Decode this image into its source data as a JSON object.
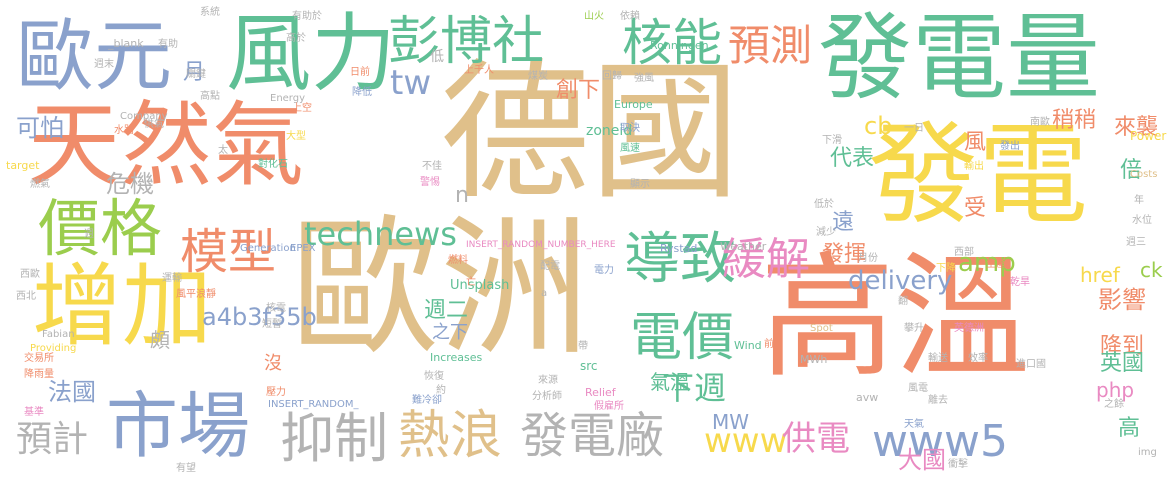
{
  "palette": {
    "tan": "#e0c08a",
    "salmon": "#f08c6a",
    "teal": "#5fbf95",
    "yellow": "#f7d94c",
    "green": "#9bcd4d",
    "gray": "#b3b3b3",
    "blue": "#8aa1cc",
    "pink": "#e98ac2"
  },
  "words": [
    {
      "text": "德國",
      "color": "tan"
    },
    {
      "text": "歐洲",
      "color": "tan"
    },
    {
      "text": "高溫",
      "color": "salmon"
    },
    {
      "text": "發電量",
      "color": "teal"
    },
    {
      "text": "天然氣",
      "color": "salmon"
    },
    {
      "text": "發電",
      "color": "yellow"
    },
    {
      "text": "風力",
      "color": "teal"
    },
    {
      "text": "歐元",
      "color": "blue"
    },
    {
      "text": "增加",
      "color": "yellow"
    },
    {
      "text": "市場",
      "color": "blue"
    },
    {
      "text": "價格",
      "color": "green"
    },
    {
      "text": "彭博社",
      "color": "teal"
    },
    {
      "text": "核能",
      "color": "teal"
    },
    {
      "text": "預測",
      "color": "salmon"
    },
    {
      "text": "模型",
      "color": "salmon"
    },
    {
      "text": "導致",
      "color": "teal"
    },
    {
      "text": "緩解",
      "color": "pink"
    },
    {
      "text": "電價",
      "color": "teal"
    },
    {
      "text": "抑制",
      "color": "gray"
    },
    {
      "text": "熱浪",
      "color": "tan"
    },
    {
      "text": "發電廠",
      "color": "gray"
    },
    {
      "text": "預計",
      "color": "gray"
    },
    {
      "text": "technews",
      "color": "teal"
    },
    {
      "text": "www5",
      "color": "blue"
    },
    {
      "text": "www",
      "color": "yellow"
    },
    {
      "text": "供電",
      "color": "pink"
    },
    {
      "text": "delivery",
      "color": "blue"
    },
    {
      "text": "a4b3f35b",
      "color": "blue"
    },
    {
      "text": "下週",
      "color": "teal"
    },
    {
      "text": "amp",
      "color": "green"
    },
    {
      "text": "php",
      "color": "pink"
    },
    {
      "text": "影響",
      "color": "salmon"
    },
    {
      "text": "降到",
      "color": "salmon"
    },
    {
      "text": "英國",
      "color": "teal"
    },
    {
      "text": "大國",
      "color": "pink"
    },
    {
      "text": "法國",
      "color": "blue"
    },
    {
      "text": "tw",
      "color": "blue"
    },
    {
      "text": "創下",
      "color": "salmon"
    },
    {
      "text": "cb",
      "color": "yellow"
    },
    {
      "text": "代表",
      "color": "teal"
    },
    {
      "text": "危機",
      "color": "gray"
    },
    {
      "text": "可怕",
      "color": "blue"
    },
    {
      "text": "稍稍",
      "color": "salmon"
    },
    {
      "text": "來襲",
      "color": "salmon"
    },
    {
      "text": "風",
      "color": "salmon"
    },
    {
      "text": "倍",
      "color": "teal"
    },
    {
      "text": "受",
      "color": "salmon"
    },
    {
      "text": "遠",
      "color": "blue"
    },
    {
      "text": "發揮",
      "color": "salmon"
    },
    {
      "text": "週二",
      "color": "teal"
    },
    {
      "text": "氣溫",
      "color": "teal"
    },
    {
      "text": "MW",
      "color": "blue"
    },
    {
      "text": "高",
      "color": "teal"
    },
    {
      "text": "href",
      "color": "yellow"
    },
    {
      "text": "ck",
      "color": "green"
    },
    {
      "text": "月",
      "color": "blue"
    },
    {
      "text": "n",
      "color": "gray"
    },
    {
      "text": "頗",
      "color": "gray"
    },
    {
      "text": "沒",
      "color": "salmon"
    },
    {
      "text": "之下",
      "color": "blue"
    },
    {
      "text": "zoneid",
      "color": "teal"
    },
    {
      "text": "Ronningen",
      "color": "teal"
    },
    {
      "text": "Unsplash",
      "color": "teal"
    },
    {
      "text": "INSERT_RANDOM_NUMBER_HERE",
      "color": "pink"
    },
    {
      "text": "Rystad",
      "color": "blue"
    },
    {
      "text": "Weather",
      "color": "gray"
    },
    {
      "text": "Generation",
      "color": "blue"
    },
    {
      "text": "EPEX",
      "color": "blue"
    },
    {
      "text": "Increases",
      "color": "teal"
    },
    {
      "text": "Relief",
      "color": "pink"
    },
    {
      "text": "Wind",
      "color": "teal"
    },
    {
      "text": "MWh",
      "color": "gray"
    },
    {
      "text": "Power",
      "color": "yellow"
    },
    {
      "text": "Europe",
      "color": "teal"
    },
    {
      "text": "Energy",
      "color": "gray"
    },
    {
      "text": "Company",
      "color": "gray"
    },
    {
      "text": "_blank",
      "color": "gray"
    },
    {
      "text": "target",
      "color": "yellow"
    },
    {
      "text": "Fabian",
      "color": "gray"
    },
    {
      "text": "Providing",
      "color": "yellow"
    },
    {
      "text": "INSERT_RANDOM_",
      "color": "blue"
    },
    {
      "text": "Costs",
      "color": "tan"
    },
    {
      "text": "Spot",
      "color": "tan"
    },
    {
      "text": "avw",
      "color": "gray"
    },
    {
      "text": "src",
      "color": "teal"
    },
    {
      "text": "img",
      "color": "gray"
    },
    {
      "text": "來源",
      "color": "gray"
    },
    {
      "text": "分析師",
      "color": "gray"
    },
    {
      "text": "煤炭",
      "color": "gray"
    },
    {
      "text": "回歸",
      "color": "gray"
    },
    {
      "text": "山火",
      "color": "green"
    },
    {
      "text": "依賴",
      "color": "gray"
    },
    {
      "text": "強風",
      "color": "gray"
    },
    {
      "text": "取決",
      "color": "blue"
    },
    {
      "text": "風速",
      "color": "teal"
    },
    {
      "text": "顯示",
      "color": "gray"
    },
    {
      "text": "上千人",
      "color": "salmon"
    },
    {
      "text": "日前",
      "color": "salmon"
    },
    {
      "text": "降低",
      "color": "blue"
    },
    {
      "text": "上空",
      "color": "salmon"
    },
    {
      "text": "大型",
      "color": "yellow"
    },
    {
      "text": "太",
      "color": "gray"
    },
    {
      "text": "對化石",
      "color": "teal"
    },
    {
      "text": "不佳",
      "color": "gray"
    },
    {
      "text": "警惕",
      "color": "pink"
    },
    {
      "text": "燃料",
      "color": "salmon"
    },
    {
      "text": "電力",
      "color": "blue"
    },
    {
      "text": "亡",
      "color": "salmon"
    },
    {
      "text": "約",
      "color": "gray"
    },
    {
      "text": "難冷卻",
      "color": "blue"
    },
    {
      "text": "假雇所",
      "color": "pink"
    },
    {
      "text": "前",
      "color": "salmon"
    },
    {
      "text": "輸送",
      "color": "gray"
    },
    {
      "text": "效率",
      "color": "gray"
    },
    {
      "text": "風電",
      "color": "gray"
    },
    {
      "text": "離去",
      "color": "gray"
    },
    {
      "text": "天氣",
      "color": "blue"
    },
    {
      "text": "衝擊",
      "color": "gray"
    },
    {
      "text": "之餘",
      "color": "gray"
    },
    {
      "text": "攀升",
      "color": "gray"
    },
    {
      "text": "英德洲",
      "color": "pink"
    },
    {
      "text": "進口國",
      "color": "gray"
    },
    {
      "text": "翻",
      "color": "gray"
    },
    {
      "text": "乾旱",
      "color": "pink"
    },
    {
      "text": "下降",
      "color": "yellow"
    },
    {
      "text": "生產",
      "color": "salmon"
    },
    {
      "text": "週三",
      "color": "gray"
    },
    {
      "text": "水位",
      "color": "gray"
    },
    {
      "text": "年",
      "color": "gray"
    },
    {
      "text": "西部",
      "color": "gray"
    },
    {
      "text": "低於",
      "color": "gray"
    },
    {
      "text": "輸出",
      "color": "yellow"
    },
    {
      "text": "發出",
      "color": "blue"
    },
    {
      "text": "南歐",
      "color": "gray"
    },
    {
      "text": "一日",
      "color": "gray"
    },
    {
      "text": "下滑",
      "color": "gray"
    },
    {
      "text": "減少",
      "color": "gray"
    },
    {
      "text": "月份",
      "color": "gray"
    },
    {
      "text": "週",
      "color": "gray"
    },
    {
      "text": "燃氣",
      "color": "gray"
    },
    {
      "text": "水路",
      "color": "salmon"
    },
    {
      "text": "供氣",
      "color": "gray"
    },
    {
      "text": "高點",
      "color": "gray"
    },
    {
      "text": "週末",
      "color": "gray"
    },
    {
      "text": "關鍵",
      "color": "gray"
    },
    {
      "text": "系統",
      "color": "gray"
    },
    {
      "text": "有助於",
      "color": "gray"
    },
    {
      "text": "高於",
      "color": "gray"
    },
    {
      "text": "核電",
      "color": "gray"
    },
    {
      "text": "短暫",
      "color": "gray"
    },
    {
      "text": "壓力",
      "color": "salmon"
    },
    {
      "text": "恢復",
      "color": "gray"
    },
    {
      "text": "有望",
      "color": "gray"
    },
    {
      "text": "基準",
      "color": "pink"
    },
    {
      "text": "交易所",
      "color": "salmon"
    },
    {
      "text": "降雨量",
      "color": "salmon"
    },
    {
      "text": "西歐",
      "color": "gray"
    },
    {
      "text": "西北",
      "color": "gray"
    },
    {
      "text": "運輸",
      "color": "gray"
    },
    {
      "text": "風平浪靜",
      "color": "salmon"
    },
    {
      "text": "有助",
      "color": "gray"
    },
    {
      "text": "低",
      "color": "gray"
    },
    {
      "text": "配電",
      "color": "gray"
    },
    {
      "text": "a",
      "color": "gray"
    },
    {
      "text": "帶",
      "color": "gray"
    }
  ]
}
